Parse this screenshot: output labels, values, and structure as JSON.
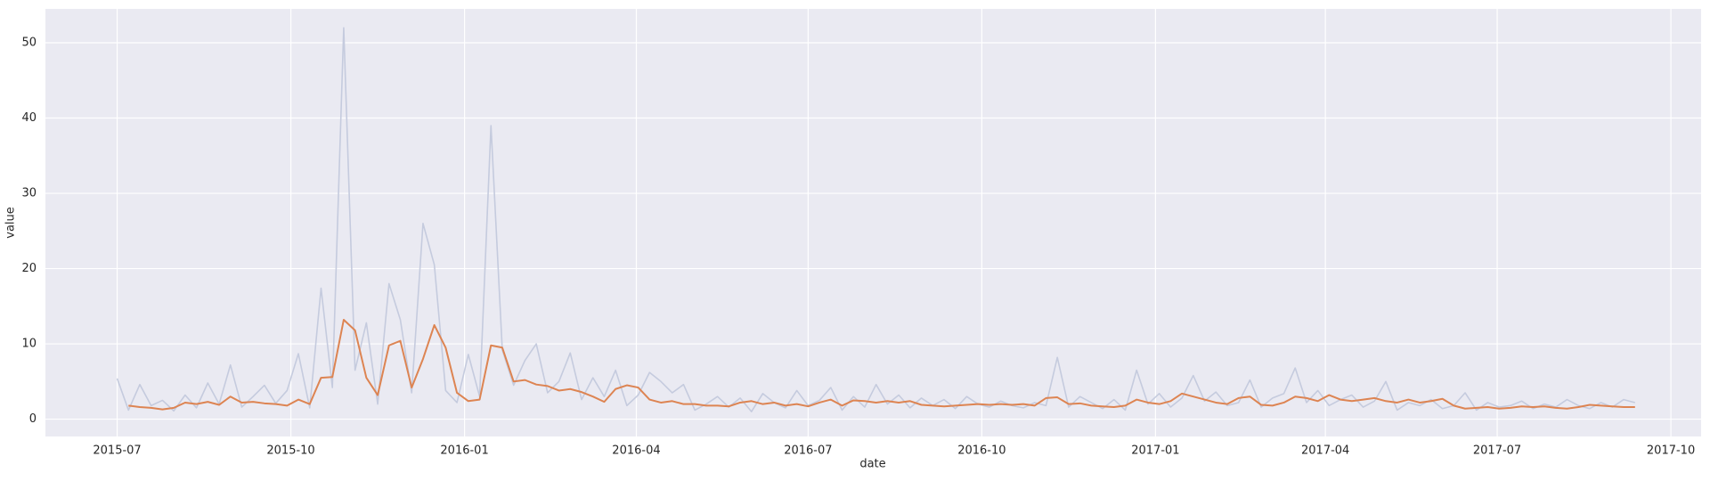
{
  "chart_data": {
    "type": "line",
    "x_label": "date",
    "y_label": "value",
    "x": [
      16617,
      16623,
      16629,
      16635,
      16641,
      16647,
      16653,
      16659,
      16665,
      16671,
      16677,
      16683,
      16689,
      16695,
      16701,
      16707,
      16713,
      16719,
      16725,
      16731,
      16737,
      16743,
      16749,
      16755,
      16761,
      16767,
      16773,
      16779,
      16785,
      16791,
      16797,
      16803,
      16809,
      16815,
      16821,
      16827,
      16833,
      16839,
      16845,
      16851,
      16857,
      16863,
      16869,
      16875,
      16881,
      16887,
      16893,
      16899,
      16905,
      16911,
      16917,
      16923,
      16929,
      16935,
      16941,
      16947,
      16953,
      16959,
      16965,
      16971,
      16977,
      16983,
      16989,
      16995,
      17001,
      17007,
      17013,
      17019,
      17025,
      17031,
      17037,
      17043,
      17049,
      17055,
      17061,
      17067,
      17073,
      17079,
      17085,
      17091,
      17097,
      17103,
      17109,
      17115,
      17121,
      17127,
      17133,
      17139,
      17145,
      17151,
      17157,
      17163,
      17169,
      17175,
      17181,
      17187,
      17193,
      17199,
      17205,
      17211,
      17217,
      17223,
      17229,
      17235,
      17241,
      17247,
      17253,
      17259,
      17265,
      17271,
      17277,
      17283,
      17289,
      17295,
      17301,
      17307,
      17313,
      17319,
      17325,
      17331,
      17337,
      17343,
      17349,
      17355,
      17361,
      17367,
      17373,
      17379,
      17385,
      17391,
      17397,
      17403,
      17409,
      17415,
      17421
    ],
    "series": [
      {
        "color": "#c5cbde",
        "values": [
          5.4,
          1.2,
          4.6,
          1.8,
          2.5,
          1.1,
          3.2,
          1.5,
          4.8,
          2.0,
          7.2,
          1.6,
          3.0,
          4.5,
          2.1,
          3.8,
          8.7,
          1.5,
          17.4,
          4.2,
          52,
          6.5,
          12.8,
          2.0,
          18,
          13.2,
          3.5,
          26,
          20.5,
          3.8,
          2.2,
          8.6,
          3.0,
          39,
          9.2,
          4.5,
          7.8,
          10.0,
          3.5,
          5.0,
          8.8,
          2.6,
          5.5,
          3.0,
          6.5,
          1.8,
          3.2,
          6.2,
          5.0,
          3.5,
          4.6,
          1.2,
          2.0,
          3.0,
          1.6,
          2.8,
          1.0,
          3.4,
          2.2,
          1.5,
          3.8,
          1.8,
          2.5,
          4.2,
          1.2,
          3.0,
          1.6,
          4.6,
          2.0,
          3.2,
          1.5,
          2.8,
          1.8,
          2.6,
          1.4,
          3.0,
          2.0,
          1.6,
          2.4,
          1.8,
          1.5,
          2.2,
          1.8,
          8.2,
          1.6,
          3.0,
          2.2,
          1.4,
          2.6,
          1.2,
          6.5,
          2.0,
          3.4,
          1.6,
          2.8,
          5.8,
          2.4,
          3.6,
          1.8,
          2.2,
          5.2,
          1.6,
          2.8,
          3.4,
          6.8,
          2.2,
          3.8,
          1.8,
          2.6,
          3.2,
          1.6,
          2.4,
          5.0,
          1.2,
          2.2,
          1.8,
          2.6,
          1.4,
          1.8,
          3.5,
          1.2,
          2.2,
          1.6,
          1.8,
          2.4,
          1.4,
          2.0,
          1.6,
          2.6,
          1.8,
          1.4,
          2.2,
          1.6,
          2.6,
          2.2
        ]
      },
      {
        "color": "#dd8452",
        "values": [
          null,
          1.8,
          1.6,
          1.5,
          1.3,
          1.5,
          2.2,
          2.0,
          2.3,
          1.9,
          3.0,
          2.2,
          2.3,
          2.1,
          2.0,
          1.8,
          2.6,
          2.0,
          5.5,
          5.6,
          13.2,
          11.8,
          5.5,
          3.2,
          9.8,
          10.4,
          4.2,
          8.0,
          12.5,
          9.5,
          3.5,
          2.4,
          2.6,
          9.8,
          9.5,
          5.0,
          5.2,
          4.6,
          4.4,
          3.8,
          4.0,
          3.6,
          3.0,
          2.3,
          4.0,
          4.5,
          4.2,
          2.6,
          2.2,
          2.4,
          2.0,
          2.0,
          1.8,
          1.8,
          1.7,
          2.2,
          2.4,
          2.0,
          2.2,
          1.8,
          2.0,
          1.7,
          2.2,
          2.6,
          1.8,
          2.5,
          2.4,
          2.2,
          2.4,
          2.2,
          2.4,
          1.9,
          1.8,
          1.7,
          1.8,
          1.9,
          2.0,
          1.9,
          2.0,
          1.9,
          2.0,
          1.8,
          2.8,
          2.9,
          2.0,
          2.1,
          1.8,
          1.7,
          1.6,
          1.8,
          2.6,
          2.2,
          2.0,
          2.4,
          3.4,
          3.0,
          2.6,
          2.2,
          2.0,
          2.8,
          3.0,
          1.9,
          1.8,
          2.2,
          3.0,
          2.8,
          2.4,
          3.2,
          2.6,
          2.4,
          2.6,
          2.8,
          2.4,
          2.2,
          2.6,
          2.2,
          2.4,
          2.7,
          1.8,
          1.4,
          1.5,
          1.6,
          1.4,
          1.5,
          1.7,
          1.6,
          1.7,
          1.5,
          1.4,
          1.6,
          1.9,
          1.8,
          1.7,
          1.6,
          1.6
        ]
      }
    ],
    "xlim": [
      16579,
      17456
    ],
    "xticks": [
      {
        "value": 16617,
        "label": "2015-07"
      },
      {
        "value": 16709,
        "label": "2015-10"
      },
      {
        "value": 16801,
        "label": "2016-01"
      },
      {
        "value": 16892,
        "label": "2016-04"
      },
      {
        "value": 16983,
        "label": "2016-07"
      },
      {
        "value": 17075,
        "label": "2016-10"
      },
      {
        "value": 17167,
        "label": "2017-01"
      },
      {
        "value": 17257,
        "label": "2017-04"
      },
      {
        "value": 17348,
        "label": "2017-07"
      },
      {
        "value": 17440,
        "label": "2017-10"
      }
    ],
    "ylim": [
      -2.3,
      54.5
    ],
    "yticks": [
      0,
      10,
      20,
      30,
      40,
      50
    ],
    "grid": true
  }
}
